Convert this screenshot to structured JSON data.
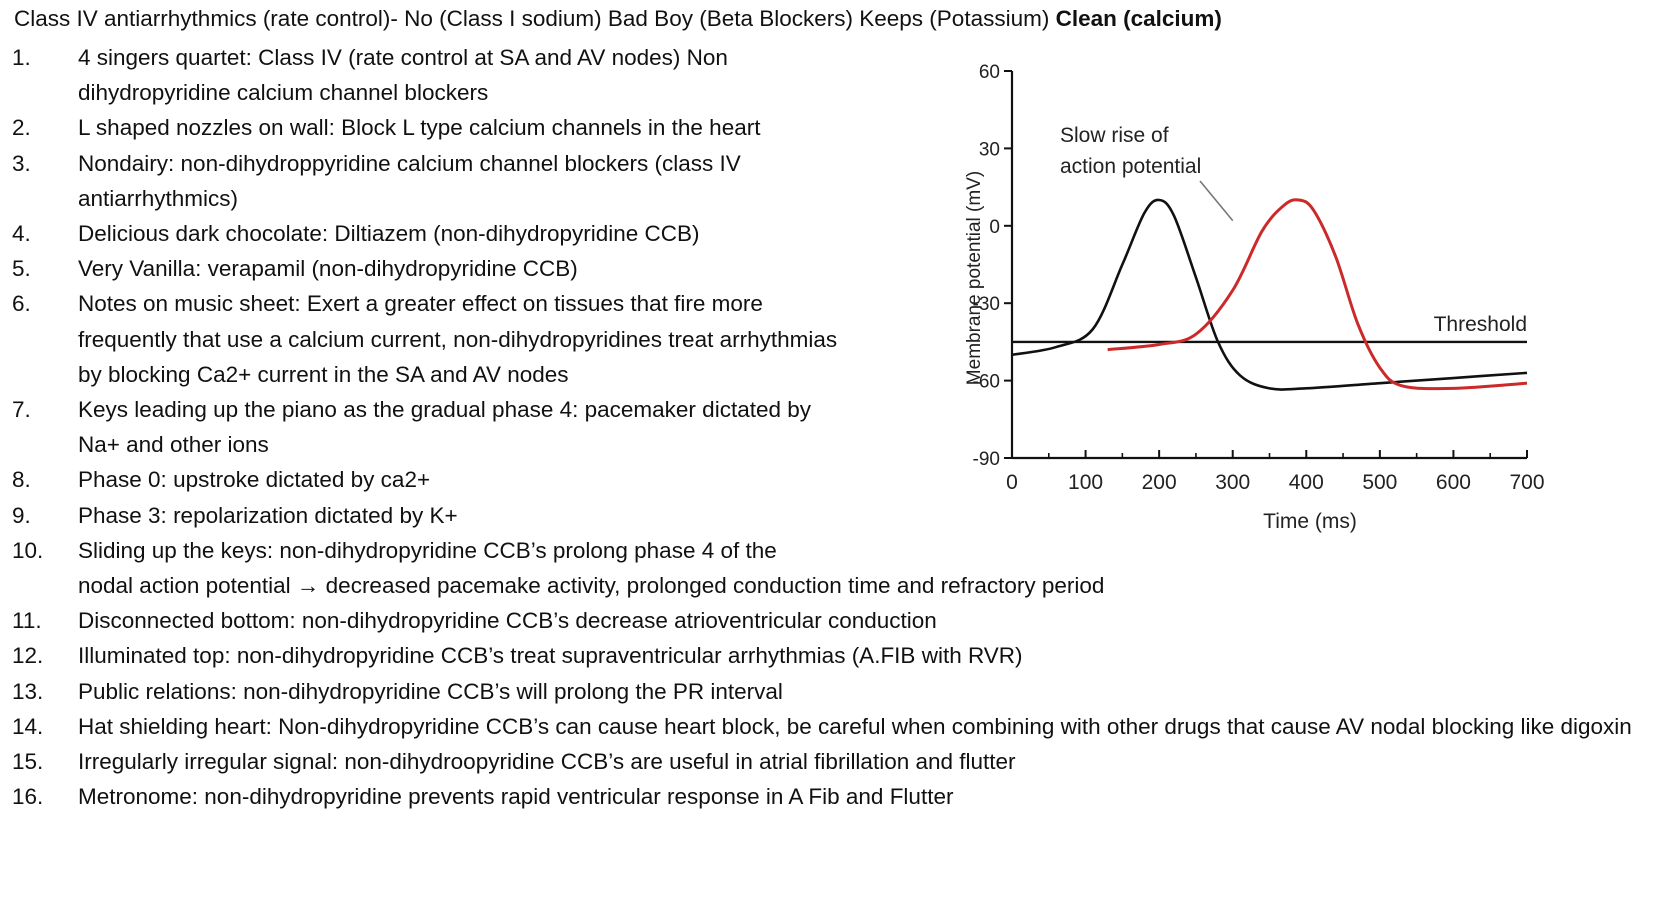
{
  "title": {
    "main": "Class IV antiarrhythmics (rate control)- No (Class I sodium) Bad Boy (Beta Blockers) Keeps (Potassium) ",
    "bold": "Clean (calcium)"
  },
  "items": [
    {
      "num": "1.",
      "text": "4 singers quartet: Class IV (rate control at SA and AV nodes) Non dihydropyridine calcium channel blockers"
    },
    {
      "num": "2.",
      "text": "L shaped nozzles on wall: Block L type calcium channels in the heart"
    },
    {
      "num": "3.",
      "text": "Nondairy: non-dihydroppyridine calcium channel blockers (class IV antiarrhythmics)"
    },
    {
      "num": "4.",
      "text": "Delicious dark chocolate: Diltiazem (non-dihydropyridine CCB)"
    },
    {
      "num": "5.",
      "text": "Very Vanilla: verapamil (non-dihydropyridine CCB)"
    },
    {
      "num": "6.",
      "text": "Notes on music sheet: Exert a greater effect on tissues that fire more frequently that use a calcium current, non-dihydropyridines treat arrhythmias by blocking Ca2+ current in the SA and AV nodes"
    },
    {
      "num": "7.",
      "text": "Keys leading up the piano as the gradual phase 4: pacemaker dictated by Na+ and other ions"
    },
    {
      "num": "8.",
      "text": "Phase 0: upstroke dictated by ca2+"
    },
    {
      "num": "9.",
      "text": "Phase 3: repolarization dictated by K+"
    },
    {
      "num": "10.",
      "text": "Sliding up the keys: non-dihydropyridine CCB’s prolong phase 4 of the",
      "text2": "nodal action potential → decreased pacemake activity, prolonged conduction time and refractory period"
    },
    {
      "num": "11.",
      "text": "Disconnected bottom: non-dihydropyridine CCB’s decrease atrioventricular conduction"
    },
    {
      "num": "12.",
      "text": "Illuminated top: non-dihydropyridine CCB’s treat supraventricular arrhythmias (A.FIB with RVR)"
    },
    {
      "num": "13.",
      "text": "Public relations: non-dihydropyridine CCB’s will prolong the PR interval"
    },
    {
      "num": "14.",
      "text": "Hat shielding heart: Non-dihydropyridine CCB’s can cause heart block, be careful when combining with other drugs that cause AV nodal blocking like digoxin"
    },
    {
      "num": "15.",
      "text": "Irregularly irregular signal: non-dihydroopyridine CCB’s are useful in atrial fibrillation and flutter"
    },
    {
      "num": "16.",
      "text": "Metronome: non-dihydropyridine prevents rapid ventricular response in A Fib and Flutter"
    }
  ],
  "chart_data": {
    "type": "line",
    "xlabel": "Time (ms)",
    "ylabel": "Membrane potential (mV)",
    "xlim": [
      0,
      700
    ],
    "ylim": [
      -90,
      60
    ],
    "x_ticks": [
      "0",
      "100",
      "200",
      "300",
      "400",
      "500",
      "600",
      "700"
    ],
    "y_ticks": [
      "60",
      "30",
      "0",
      "-30",
      "-60",
      "-90"
    ],
    "threshold": {
      "label": "Threshold",
      "y": -45
    },
    "annotation": {
      "line1": "Slow rise of",
      "line2": "action potential",
      "x": 300,
      "y": 2
    },
    "colors": {
      "normal": "#111111",
      "slowed": "#cc2a2a",
      "threshold": "#111111"
    },
    "series": [
      {
        "points": [
          [
            0,
            -50
          ],
          [
            60,
            -47
          ],
          [
            110,
            -40
          ],
          [
            150,
            -15
          ],
          [
            180,
            5
          ],
          [
            200,
            10
          ],
          [
            220,
            4
          ],
          [
            250,
            -20
          ],
          [
            280,
            -45
          ],
          [
            310,
            -58
          ],
          [
            350,
            -63
          ],
          [
            400,
            -63
          ],
          [
            500,
            -61
          ],
          [
            600,
            -59
          ],
          [
            700,
            -57
          ]
        ]
      },
      {
        "points": [
          [
            130,
            -48
          ],
          [
            200,
            -46
          ],
          [
            250,
            -42
          ],
          [
            300,
            -25
          ],
          [
            340,
            -2
          ],
          [
            370,
            8
          ],
          [
            390,
            10
          ],
          [
            410,
            6
          ],
          [
            440,
            -12
          ],
          [
            470,
            -38
          ],
          [
            500,
            -55
          ],
          [
            530,
            -62
          ],
          [
            600,
            -63
          ],
          [
            700,
            -61
          ]
        ]
      }
    ]
  }
}
